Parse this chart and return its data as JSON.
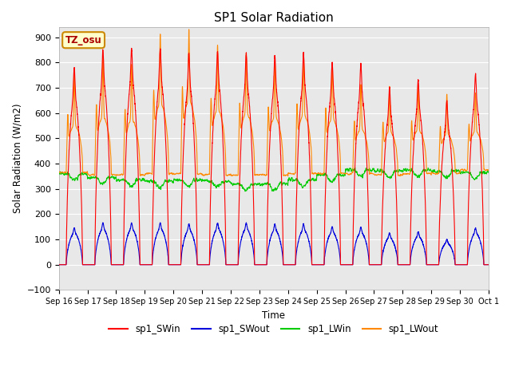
{
  "title": "SP1 Solar Radiation",
  "ylabel": "Solar Radiation (W/m2)",
  "xlabel": "Time",
  "ylim": [
    -100,
    940
  ],
  "yticks": [
    -100,
    0,
    100,
    200,
    300,
    400,
    500,
    600,
    700,
    800,
    900
  ],
  "background_color": "#e8e8e8",
  "figure_color": "#ffffff",
  "grid_color": "#ffffff",
  "annotation_text": "TZ_osu",
  "annotation_facecolor": "#ffffcc",
  "annotation_edgecolor": "#cc8800",
  "series": {
    "sp1_SWin": {
      "color": "#ff0000",
      "lw": 0.8
    },
    "sp1_SWout": {
      "color": "#0000dd",
      "lw": 0.8
    },
    "sp1_LWin": {
      "color": "#00cc00",
      "lw": 0.8
    },
    "sp1_LWout": {
      "color": "#ff8800",
      "lw": 0.8
    }
  },
  "x_tick_labels": [
    "Sep 16",
    "Sep 17",
    "Sep 18",
    "Sep 19",
    "Sep 20",
    "Sep 21",
    "Sep 22",
    "Sep 23",
    "Sep 24",
    "Sep 25",
    "Sep 26",
    "Sep 27",
    "Sep 28",
    "Sep 29",
    "Sep 30",
    "Oct 1"
  ],
  "n_days": 15,
  "points_per_day": 288,
  "SWin_peaks": [
    780,
    850,
    855,
    855,
    835,
    845,
    835,
    825,
    835,
    800,
    795,
    700,
    730,
    650,
    755
  ],
  "SWout_peaks": [
    145,
    165,
    165,
    165,
    160,
    165,
    165,
    160,
    160,
    150,
    148,
    125,
    130,
    100,
    145
  ],
  "LWin_base": [
    360,
    345,
    335,
    330,
    335,
    330,
    320,
    320,
    335,
    355,
    375,
    370,
    375,
    370,
    365
  ],
  "LWin_amp": 25,
  "LWout_base": [
    365,
    355,
    355,
    360,
    360,
    355,
    355,
    355,
    360,
    360,
    360,
    355,
    360,
    360,
    375
  ],
  "LWout_day_peak": [
    550,
    580,
    570,
    635,
    645,
    610,
    595,
    580,
    590,
    575,
    535,
    525,
    530,
    515,
    525
  ],
  "LWout_spike_peak": [
    570,
    600,
    580,
    640,
    650,
    615,
    600,
    585,
    600,
    585,
    540,
    535,
    540,
    520,
    530
  ]
}
